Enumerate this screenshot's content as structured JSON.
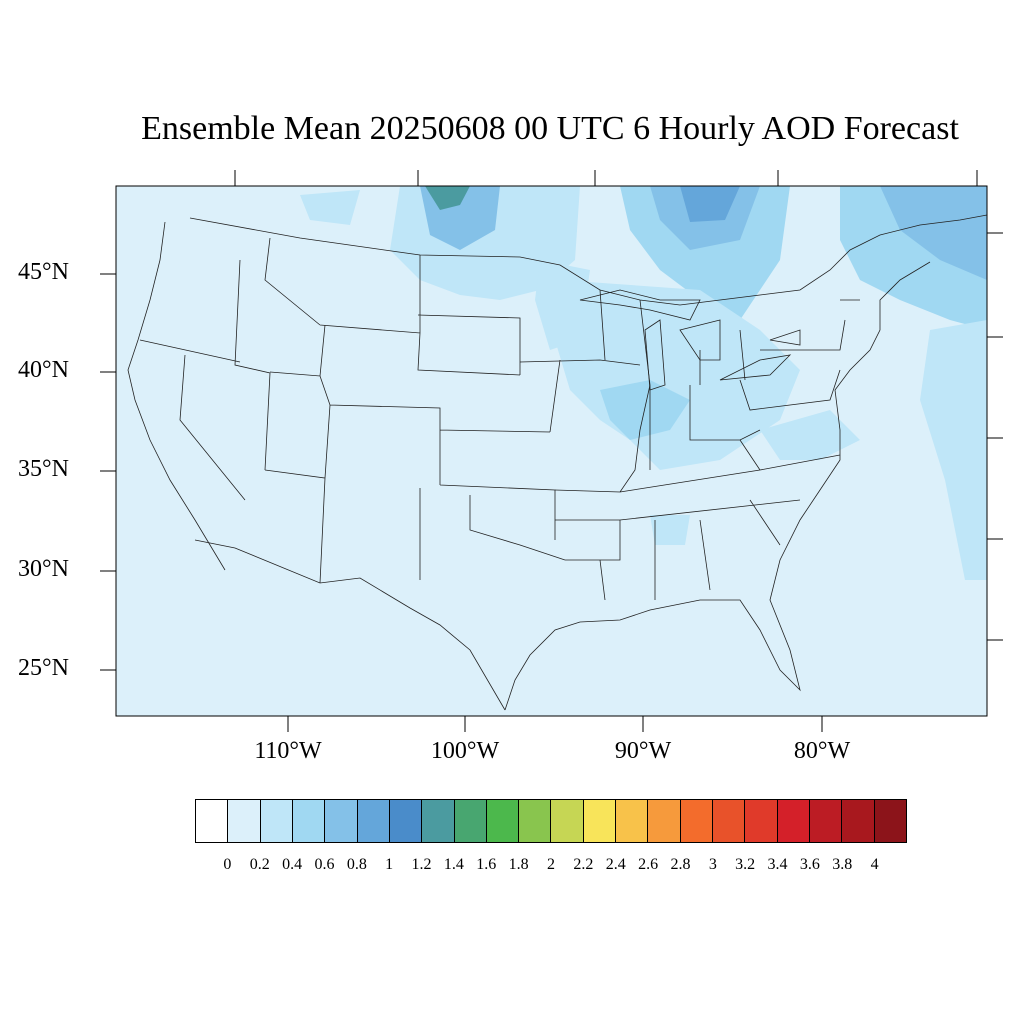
{
  "title": "Ensemble Mean 20250608 00 UTC 6 Hourly AOD Forecast",
  "map": {
    "lat_labels": [
      "45°N",
      "40°N",
      "35°N",
      "30°N",
      "25°N"
    ],
    "lon_labels": [
      "110°W",
      "100°W",
      "90°W",
      "80°W"
    ],
    "background_color": "#dcf0fa"
  },
  "colorbar": {
    "labels": [
      "0",
      "0.2",
      "0.4",
      "0.6",
      "0.8",
      "1",
      "1.2",
      "1.4",
      "1.6",
      "1.8",
      "2",
      "2.2",
      "2.4",
      "2.6",
      "2.8",
      "3",
      "3.2",
      "3.4",
      "3.6",
      "3.8",
      "4"
    ],
    "colors": [
      "#ffffff",
      "#dcf0fa",
      "#bfe6f8",
      "#a0d8f2",
      "#84c1e8",
      "#64a6da",
      "#4a8cca",
      "#4b9ba0",
      "#48a670",
      "#4cb84c",
      "#89c54e",
      "#c6d654",
      "#f8e45a",
      "#f8c24a",
      "#f69a3c",
      "#f36c2c",
      "#e8522a",
      "#e03a2a",
      "#d42029",
      "#bc1c24",
      "#a8181e",
      "#8c141a"
    ]
  }
}
